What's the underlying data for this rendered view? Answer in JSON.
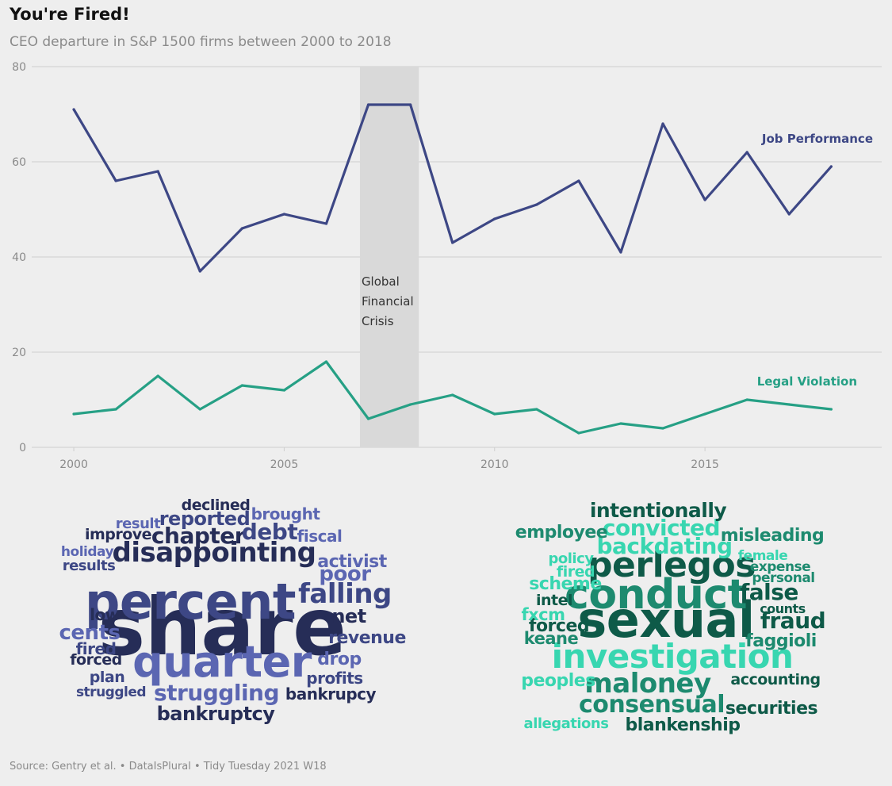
{
  "title": "You're Fired!",
  "subtitle": "CEO departure in S&P 1500 firms between 2000 to 2018",
  "caption": "Source: Gentry et al. • DataIsPlural • Tidy Tuesday 2021 W18",
  "colors": {
    "job_performance": "#3d4785",
    "legal_violation": "#26a085",
    "gridline": "#cfcfcf",
    "shade": "#d9d9d9",
    "background": "#eeeeee"
  },
  "chart_data": {
    "type": "line",
    "x": [
      2000,
      2001,
      2002,
      2003,
      2004,
      2005,
      2006,
      2007,
      2008,
      2009,
      2010,
      2011,
      2012,
      2013,
      2014,
      2015,
      2016,
      2017,
      2018
    ],
    "series": [
      {
        "name": "Job Performance",
        "values": [
          71,
          56,
          58,
          37,
          46,
          49,
          47,
          72,
          72,
          43,
          48,
          51,
          56,
          41,
          68,
          52,
          62,
          49,
          59
        ]
      },
      {
        "name": "Legal Violation",
        "values": [
          7,
          8,
          15,
          8,
          13,
          12,
          18,
          6,
          9,
          11,
          7,
          8,
          3,
          5,
          4,
          7,
          10,
          9,
          8
        ]
      }
    ],
    "xlim": [
      1999,
      2019.2
    ],
    "ylim": [
      0,
      80
    ],
    "x_ticks": [
      2000,
      2005,
      2010,
      2015
    ],
    "y_ticks": [
      0,
      20,
      40,
      60,
      80
    ],
    "grid": "horizontal",
    "annotations": [
      {
        "text_lines": [
          "Global",
          "Financial",
          "Crisis"
        ],
        "x_start": 2006.8,
        "x_end": 2008.2
      }
    ]
  },
  "wordclouds": [
    {
      "series": "Job Performance",
      "words": [
        {
          "text": "share",
          "shade": "#262d57"
        },
        {
          "text": "percent",
          "shade": "#3d4785"
        },
        {
          "text": "quarter",
          "shade": "#5b66b2"
        },
        {
          "text": "disappointing",
          "shade": "#262d57"
        },
        {
          "text": "falling",
          "shade": "#3d4785"
        },
        {
          "text": "struggling",
          "shade": "#5b66b2"
        },
        {
          "text": "bankruptcy",
          "shade": "#262d57"
        },
        {
          "text": "bankrupcy",
          "shade": "#262d57"
        },
        {
          "text": "chapter",
          "shade": "#262d57"
        },
        {
          "text": "debt",
          "shade": "#3d4785"
        },
        {
          "text": "reported",
          "shade": "#3d4785"
        },
        {
          "text": "poor",
          "shade": "#5b66b2"
        },
        {
          "text": "activist",
          "shade": "#5b66b2"
        },
        {
          "text": "net",
          "shade": "#262d57"
        },
        {
          "text": "revenue",
          "shade": "#3d4785"
        },
        {
          "text": "cents",
          "shade": "#5b66b2"
        },
        {
          "text": "drop",
          "shade": "#5b66b2"
        },
        {
          "text": "profits",
          "shade": "#3d4785"
        },
        {
          "text": "fiscal",
          "shade": "#5b66b2"
        },
        {
          "text": "brought",
          "shade": "#5b66b2"
        },
        {
          "text": "declined",
          "shade": "#262d57"
        },
        {
          "text": "result",
          "shade": "#5b66b2"
        },
        {
          "text": "improve",
          "shade": "#262d57"
        },
        {
          "text": "holiday",
          "shade": "#5b66b2"
        },
        {
          "text": "results",
          "shade": "#3d4785"
        },
        {
          "text": "low",
          "shade": "#262d57"
        },
        {
          "text": "fired",
          "shade": "#3d4785"
        },
        {
          "text": "forced",
          "shade": "#262d57"
        },
        {
          "text": "plan",
          "shade": "#3d4785"
        },
        {
          "text": "struggled",
          "shade": "#3d4785"
        }
      ]
    },
    {
      "series": "Legal Violation",
      "words": [
        {
          "text": "sexual",
          "shade": "#0e5a48"
        },
        {
          "text": "conduct",
          "shade": "#1d8a6f"
        },
        {
          "text": "investigation",
          "shade": "#38d6b0"
        },
        {
          "text": "perlegos",
          "shade": "#0e5a48"
        },
        {
          "text": "maloney",
          "shade": "#1d8a6f"
        },
        {
          "text": "consensual",
          "shade": "#1d8a6f"
        },
        {
          "text": "backdating",
          "shade": "#38d6b0"
        },
        {
          "text": "convicted",
          "shade": "#38d6b0"
        },
        {
          "text": "intentionally",
          "shade": "#0e5a48"
        },
        {
          "text": "securities",
          "shade": "#0e5a48"
        },
        {
          "text": "blankenship",
          "shade": "#0e5a48"
        },
        {
          "text": "false",
          "shade": "#0e5a48"
        },
        {
          "text": "fraud",
          "shade": "#0e5a48"
        },
        {
          "text": "faggioli",
          "shade": "#1d8a6f"
        },
        {
          "text": "employee",
          "shade": "#1d8a6f"
        },
        {
          "text": "misleading",
          "shade": "#1d8a6f"
        },
        {
          "text": "scheme",
          "shade": "#38d6b0"
        },
        {
          "text": "forced",
          "shade": "#0e5a48"
        },
        {
          "text": "peoples",
          "shade": "#38d6b0"
        },
        {
          "text": "accounting",
          "shade": "#0e5a48"
        },
        {
          "text": "allegations",
          "shade": "#38d6b0"
        },
        {
          "text": "keane",
          "shade": "#1d8a6f"
        },
        {
          "text": "fxcm",
          "shade": "#38d6b0"
        },
        {
          "text": "intel",
          "shade": "#0e5a48"
        },
        {
          "text": "fired",
          "shade": "#38d6b0"
        },
        {
          "text": "policy",
          "shade": "#38d6b0"
        },
        {
          "text": "female",
          "shade": "#38d6b0"
        },
        {
          "text": "expense",
          "shade": "#1d8a6f"
        },
        {
          "text": "personal",
          "shade": "#1d8a6f"
        },
        {
          "text": "counts",
          "shade": "#0e5a48"
        }
      ]
    }
  ]
}
